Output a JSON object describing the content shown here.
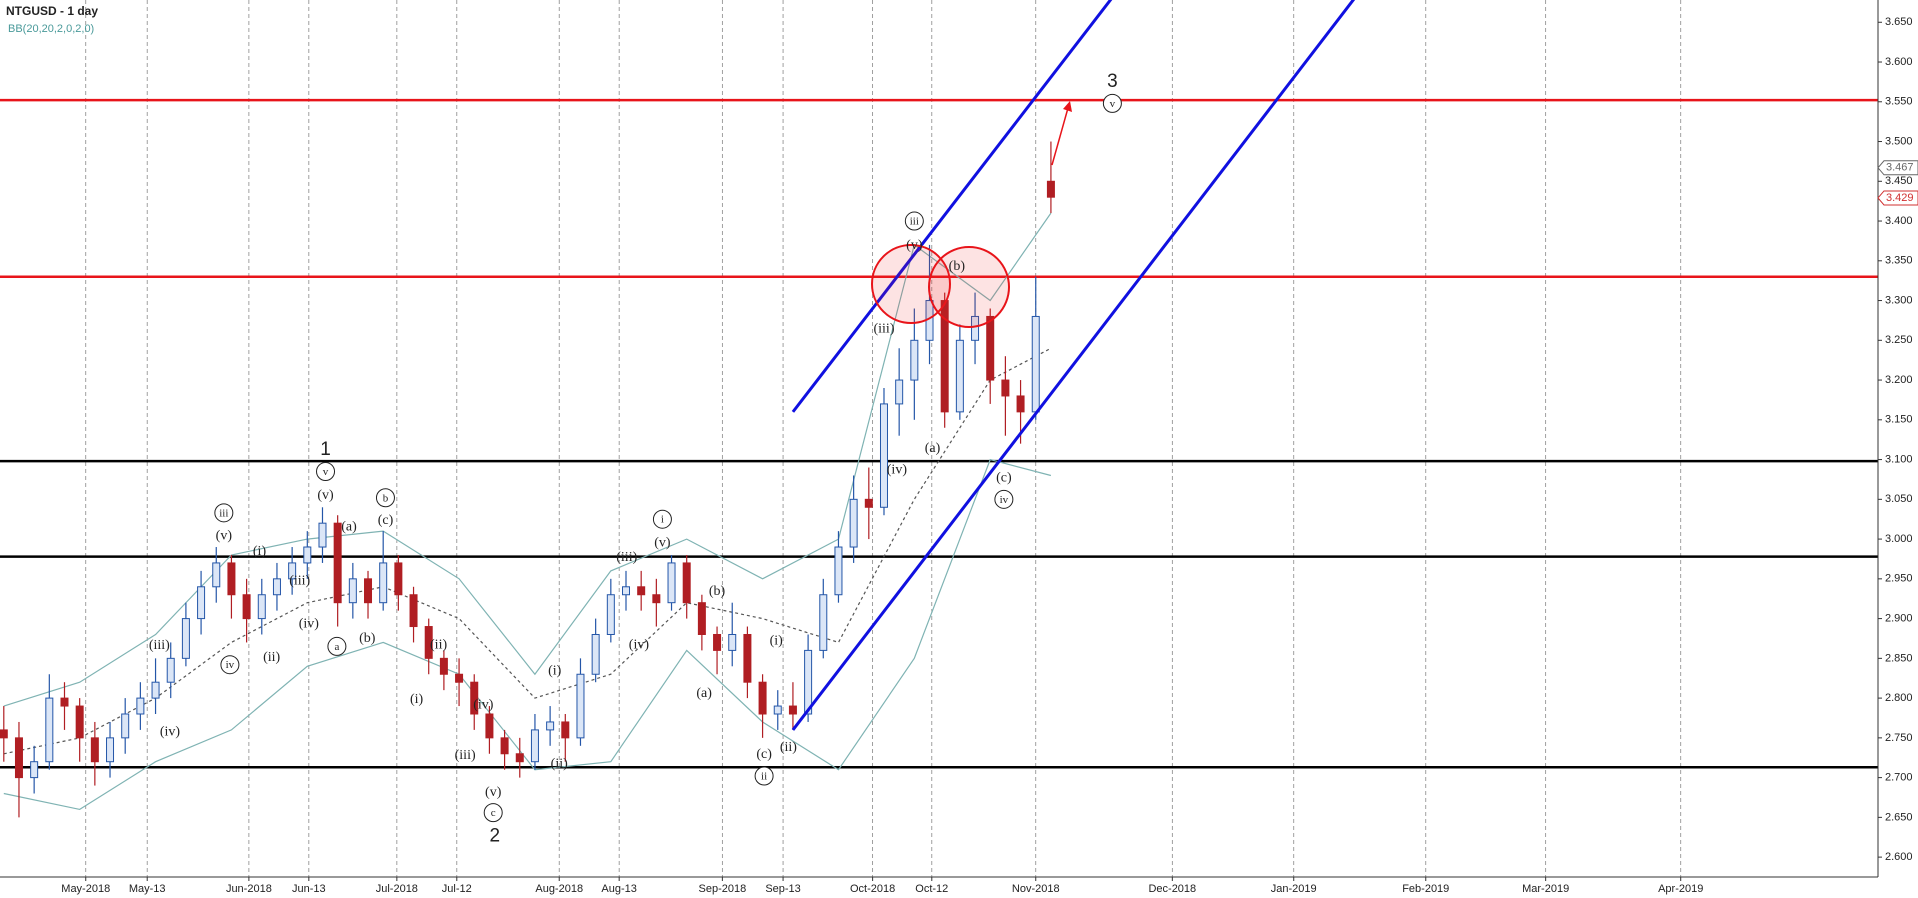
{
  "chart_data": {
    "type": "candlestick",
    "title": "NTGUSD - 1 day",
    "subtitle": "BB(20,20,2,0,2,0)",
    "xlim": [
      -0.5,
      247
    ],
    "ylim": [
      2.575,
      3.678
    ],
    "grid": "x",
    "xticks": [
      {
        "value": 10.8,
        "label": "May-2018"
      },
      {
        "value": 18.9,
        "label": "May-13"
      },
      {
        "value": 32.3,
        "label": "Jun-2018"
      },
      {
        "value": 40.2,
        "label": "Jun-13"
      },
      {
        "value": 51.8,
        "label": "Jul-2018"
      },
      {
        "value": 59.7,
        "label": "Jul-12"
      },
      {
        "value": 73.2,
        "label": "Aug-2018"
      },
      {
        "value": 81.1,
        "label": "Aug-13"
      },
      {
        "value": 94.7,
        "label": "Sep-2018"
      },
      {
        "value": 102.7,
        "label": "Sep-13"
      },
      {
        "value": 114.5,
        "label": "Oct-2018"
      },
      {
        "value": 122.3,
        "label": "Oct-12"
      },
      {
        "value": 136,
        "label": "Nov-2018"
      },
      {
        "value": 154,
        "label": "Dec-2018"
      },
      {
        "value": 170,
        "label": "Jan-2019"
      },
      {
        "value": 187.4,
        "label": "Feb-2019"
      },
      {
        "value": 203.2,
        "label": "Mar-2019"
      },
      {
        "value": 221,
        "label": "Apr-2019"
      }
    ],
    "yticks": [
      {
        "value": 2.6,
        "label": "2.600"
      },
      {
        "value": 2.65,
        "label": "2.650"
      },
      {
        "value": 2.7,
        "label": "2.700"
      },
      {
        "value": 2.75,
        "label": "2.750"
      },
      {
        "value": 2.8,
        "label": "2.800"
      },
      {
        "value": 2.85,
        "label": "2.850"
      },
      {
        "value": 2.9,
        "label": "2.900"
      },
      {
        "value": 2.95,
        "label": "2.950"
      },
      {
        "value": 3.0,
        "label": "3.000"
      },
      {
        "value": 3.05,
        "label": "3.050"
      },
      {
        "value": 3.1,
        "label": "3.100"
      },
      {
        "value": 3.15,
        "label": "3.150"
      },
      {
        "value": 3.2,
        "label": "3.200"
      },
      {
        "value": 3.25,
        "label": "3.250"
      },
      {
        "value": 3.3,
        "label": "3.300"
      },
      {
        "value": 3.35,
        "label": "3.350"
      },
      {
        "value": 3.4,
        "label": "3.400"
      },
      {
        "value": 3.45,
        "label": "3.450"
      },
      {
        "value": 3.5,
        "label": "3.500"
      },
      {
        "value": 3.55,
        "label": "3.550"
      },
      {
        "value": 3.6,
        "label": "3.600"
      },
      {
        "value": 3.65,
        "label": "3.650"
      }
    ],
    "candles": {
      "up_color": "#2456a8",
      "down_color": "#b01e23",
      "x": [
        0,
        2,
        4,
        6,
        8,
        10,
        12,
        14,
        16,
        18,
        20,
        22,
        24,
        26,
        28,
        30,
        32,
        34,
        36,
        38,
        40,
        42,
        44,
        46,
        48,
        50,
        52,
        54,
        56,
        58,
        60,
        62,
        64,
        66,
        68,
        70,
        72,
        74,
        76,
        78,
        80,
        82,
        84,
        86,
        88,
        90,
        92,
        94,
        96,
        98,
        100,
        102,
        104,
        106,
        108,
        110,
        112,
        114,
        116,
        118,
        120,
        122,
        124,
        126,
        128,
        130,
        132,
        134,
        136,
        138
      ],
      "open": [
        2.76,
        2.75,
        2.7,
        2.72,
        2.8,
        2.79,
        2.75,
        2.72,
        2.75,
        2.78,
        2.8,
        2.82,
        2.85,
        2.9,
        2.94,
        2.97,
        2.93,
        2.9,
        2.93,
        2.95,
        2.97,
        2.99,
        3.02,
        2.92,
        2.95,
        2.92,
        2.97,
        2.93,
        2.89,
        2.85,
        2.83,
        2.82,
        2.78,
        2.75,
        2.73,
        2.72,
        2.76,
        2.77,
        2.75,
        2.83,
        2.88,
        2.93,
        2.94,
        2.93,
        2.92,
        2.97,
        2.92,
        2.88,
        2.86,
        2.88,
        2.82,
        2.78,
        2.79,
        2.78,
        2.86,
        2.93,
        2.99,
        3.05,
        3.04,
        3.17,
        3.2,
        3.25,
        3.3,
        3.16,
        3.25,
        3.28,
        3.2,
        3.18,
        3.16,
        3.45
      ],
      "high": [
        2.79,
        2.77,
        2.74,
        2.83,
        2.82,
        2.8,
        2.77,
        2.77,
        2.8,
        2.82,
        2.85,
        2.87,
        2.92,
        2.96,
        2.99,
        2.98,
        2.95,
        2.95,
        2.97,
        2.99,
        3.01,
        3.04,
        3.03,
        2.97,
        2.96,
        3.01,
        2.98,
        2.94,
        2.9,
        2.86,
        2.85,
        2.83,
        2.79,
        2.76,
        2.75,
        2.78,
        2.79,
        2.78,
        2.85,
        2.9,
        2.95,
        2.96,
        2.96,
        2.95,
        2.98,
        2.98,
        2.93,
        2.89,
        2.92,
        2.89,
        2.83,
        2.81,
        2.82,
        2.88,
        2.95,
        3.01,
        3.08,
        3.09,
        3.19,
        3.24,
        3.29,
        3.37,
        3.31,
        3.27,
        3.31,
        3.29,
        3.23,
        3.2,
        3.33,
        3.5
      ],
      "low": [
        2.72,
        2.65,
        2.68,
        2.71,
        2.76,
        2.72,
        2.69,
        2.7,
        2.73,
        2.76,
        2.78,
        2.8,
        2.84,
        2.88,
        2.92,
        2.9,
        2.87,
        2.88,
        2.91,
        2.93,
        2.95,
        2.97,
        2.89,
        2.9,
        2.9,
        2.91,
        2.91,
        2.87,
        2.83,
        2.81,
        2.79,
        2.76,
        2.73,
        2.71,
        2.7,
        2.71,
        2.74,
        2.72,
        2.74,
        2.82,
        2.87,
        2.91,
        2.91,
        2.89,
        2.91,
        2.9,
        2.86,
        2.83,
        2.84,
        2.8,
        2.75,
        2.76,
        2.76,
        2.77,
        2.85,
        2.92,
        2.97,
        3.0,
        3.03,
        3.13,
        3.15,
        3.22,
        3.14,
        3.15,
        3.22,
        3.17,
        3.13,
        3.12,
        3.15,
        3.41
      ],
      "close": [
        2.75,
        2.7,
        2.72,
        2.8,
        2.79,
        2.75,
        2.72,
        2.75,
        2.78,
        2.8,
        2.82,
        2.85,
        2.9,
        2.94,
        2.97,
        2.93,
        2.9,
        2.93,
        2.95,
        2.97,
        2.99,
        3.02,
        2.92,
        2.95,
        2.92,
        2.97,
        2.93,
        2.89,
        2.85,
        2.83,
        2.82,
        2.78,
        2.75,
        2.73,
        2.72,
        2.76,
        2.77,
        2.75,
        2.83,
        2.88,
        2.93,
        2.94,
        2.93,
        2.92,
        2.97,
        2.92,
        2.88,
        2.86,
        2.88,
        2.82,
        2.78,
        2.79,
        2.78,
        2.86,
        2.93,
        2.99,
        3.05,
        3.04,
        3.17,
        3.2,
        3.25,
        3.3,
        3.16,
        3.25,
        3.28,
        3.2,
        3.18,
        3.16,
        3.28,
        3.43
      ]
    },
    "bands": {
      "x": [
        0,
        10,
        20,
        30,
        40,
        50,
        60,
        70,
        80,
        90,
        100,
        110,
        120,
        130,
        138
      ],
      "lines": [
        {
          "color": "#7fb3b3",
          "dash": false,
          "values": [
            2.79,
            2.82,
            2.88,
            2.98,
            3.0,
            3.01,
            2.95,
            2.83,
            2.96,
            3.0,
            2.95,
            3.0,
            3.37,
            3.3,
            3.41
          ]
        },
        {
          "color": "#555555",
          "dash": true,
          "values": [
            2.73,
            2.75,
            2.8,
            2.87,
            2.92,
            2.94,
            2.9,
            2.8,
            2.83,
            2.92,
            2.9,
            2.87,
            3.05,
            3.2,
            3.24
          ]
        },
        {
          "color": "#7fb3b3",
          "dash": false,
          "values": [
            2.68,
            2.66,
            2.72,
            2.76,
            2.84,
            2.87,
            2.83,
            2.71,
            2.72,
            2.86,
            2.77,
            2.71,
            2.85,
            3.1,
            3.08
          ]
        }
      ]
    },
    "levels": [
      {
        "value": 3.552,
        "color": "#e8141a"
      },
      {
        "value": 3.33,
        "color": "#e8141a"
      },
      {
        "value": 3.098,
        "color": "#000000"
      },
      {
        "value": 2.978,
        "color": "#000000"
      },
      {
        "value": 2.713,
        "color": "#000000"
      }
    ],
    "channel": [
      {
        "color": "#1010e0",
        "x": [
          104,
          146
        ],
        "y": [
          3.16,
          3.68
        ]
      },
      {
        "color": "#1010e0",
        "x": [
          104,
          178
        ],
        "y": [
          2.76,
          3.68
        ]
      }
    ],
    "price_tags": [
      {
        "value": 3.467,
        "color": "#666666"
      },
      {
        "value": 3.429,
        "color": "#d03030"
      }
    ],
    "annotations": [
      {
        "text": "1",
        "x": 42.4,
        "y": 3.113,
        "style": "wave"
      },
      {
        "text": "v",
        "x": 42.4,
        "y": 3.085,
        "style": "circled"
      },
      {
        "text": "(v)",
        "x": 42.4,
        "y": 3.056,
        "style": "plain"
      },
      {
        "text": "2",
        "x": 64.7,
        "y": 2.627,
        "style": "wave"
      },
      {
        "text": "c",
        "x": 64.5,
        "y": 2.656,
        "style": "circled"
      },
      {
        "text": "(v)",
        "x": 64.5,
        "y": 2.682,
        "style": "plain"
      },
      {
        "text": "3",
        "x": 146.1,
        "y": 3.576,
        "style": "wave"
      },
      {
        "text": "v",
        "x": 146.1,
        "y": 3.548,
        "style": "circled"
      },
      {
        "text": "iii",
        "x": 120,
        "y": 3.4,
        "style": "circled"
      },
      {
        "text": "(v)",
        "x": 120,
        "y": 3.37,
        "style": "plain"
      },
      {
        "text": "(b)",
        "x": 125.6,
        "y": 3.344,
        "style": "plain"
      },
      {
        "text": "(iii)",
        "x": 116,
        "y": 3.265,
        "style": "plain"
      },
      {
        "text": "(iv)",
        "x": 117.7,
        "y": 3.088,
        "style": "plain"
      },
      {
        "text": "(a)",
        "x": 122.4,
        "y": 3.115,
        "style": "plain"
      },
      {
        "text": "(c)",
        "x": 131.8,
        "y": 3.078,
        "style": "plain"
      },
      {
        "text": "iv",
        "x": 131.8,
        "y": 3.05,
        "style": "circled"
      },
      {
        "text": "iii",
        "x": 29,
        "y": 3.033,
        "style": "circled"
      },
      {
        "text": "(v)",
        "x": 29,
        "y": 3.005,
        "style": "plain"
      },
      {
        "text": "(i)",
        "x": 33.7,
        "y": 2.985,
        "style": "plain"
      },
      {
        "text": "(iii)",
        "x": 39,
        "y": 2.948,
        "style": "plain"
      },
      {
        "text": "(iv)",
        "x": 40.2,
        "y": 2.894,
        "style": "plain"
      },
      {
        "text": "(ii)",
        "x": 35.3,
        "y": 2.852,
        "style": "plain"
      },
      {
        "text": "iv",
        "x": 29.8,
        "y": 2.842,
        "style": "circled"
      },
      {
        "text": "(iii)",
        "x": 20.5,
        "y": 2.867,
        "style": "plain"
      },
      {
        "text": "(iv)",
        "x": 21.9,
        "y": 2.758,
        "style": "plain"
      },
      {
        "text": "(a)",
        "x": 45.5,
        "y": 3.016,
        "style": "plain"
      },
      {
        "text": "b",
        "x": 50.3,
        "y": 3.052,
        "style": "circled"
      },
      {
        "text": "(c)",
        "x": 50.3,
        "y": 3.024,
        "style": "plain"
      },
      {
        "text": "(b)",
        "x": 47.9,
        "y": 2.876,
        "style": "plain"
      },
      {
        "text": "a",
        "x": 43.9,
        "y": 2.865,
        "style": "circled"
      },
      {
        "text": "(ii)",
        "x": 57.3,
        "y": 2.868,
        "style": "plain"
      },
      {
        "text": "(i)",
        "x": 54.4,
        "y": 2.799,
        "style": "plain"
      },
      {
        "text": "(iii)",
        "x": 60.8,
        "y": 2.729,
        "style": "plain"
      },
      {
        "text": "(iv)",
        "x": 63.2,
        "y": 2.792,
        "style": "plain"
      },
      {
        "text": "(i)",
        "x": 72.6,
        "y": 2.835,
        "style": "plain"
      },
      {
        "text": "(ii)",
        "x": 73.2,
        "y": 2.718,
        "style": "plain"
      },
      {
        "text": "(iii)",
        "x": 82.1,
        "y": 2.978,
        "style": "plain"
      },
      {
        "text": "(iv)",
        "x": 83.7,
        "y": 2.868,
        "style": "plain"
      },
      {
        "text": "i",
        "x": 86.8,
        "y": 3.025,
        "style": "circled"
      },
      {
        "text": "(v)",
        "x": 86.8,
        "y": 2.996,
        "style": "plain"
      },
      {
        "text": "(b)",
        "x": 94,
        "y": 2.935,
        "style": "plain"
      },
      {
        "text": "(a)",
        "x": 92.3,
        "y": 2.807,
        "style": "plain"
      },
      {
        "text": "(i)",
        "x": 101.8,
        "y": 2.873,
        "style": "plain"
      },
      {
        "text": "(ii)",
        "x": 103.4,
        "y": 2.739,
        "style": "plain"
      },
      {
        "text": "(c)",
        "x": 100.2,
        "y": 2.73,
        "style": "plain"
      },
      {
        "text": "ii",
        "x": 100.2,
        "y": 2.702,
        "style": "circled"
      }
    ]
  }
}
